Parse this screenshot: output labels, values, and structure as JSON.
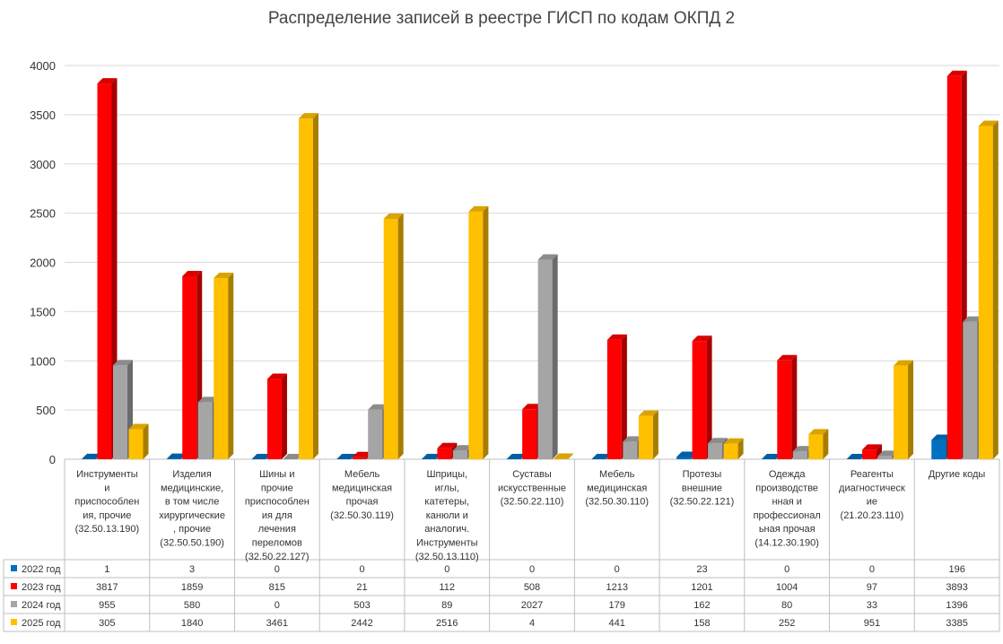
{
  "chart_data": {
    "type": "bar",
    "title": "Распределение записей в реестре ГИСП по кодам ОКПД 2",
    "ylim": [
      0,
      4000
    ],
    "yticks": [
      0,
      500,
      1000,
      1500,
      2000,
      2500,
      3000,
      3500,
      4000
    ],
    "grid": true,
    "legend": "data-table-left",
    "categories": [
      [
        "Инструменты",
        "и",
        "приспособлен",
        "ия, прочие",
        "(32.50.13.190)"
      ],
      [
        "Изделия",
        "медицинские,",
        "в том числе",
        "хирургические",
        ", прочие",
        "(32.50.50.190)"
      ],
      [
        "Шины и",
        "прочие",
        "приспособлен",
        "ия для",
        "лечения",
        "переломов",
        "(32.50.22.127)"
      ],
      [
        "Мебель",
        "медицинская",
        "прочая",
        "(32.50.30.119)"
      ],
      [
        "Шприцы,",
        "иглы,",
        "катетеры,",
        "канюли и",
        "аналогич.",
        "Инструменты",
        "(32.50.13.110)"
      ],
      [
        "Суставы",
        "искусственные",
        "(32.50.22.110)"
      ],
      [
        "Мебель",
        "медицинская",
        "(32.50.30.110)"
      ],
      [
        "Протезы",
        "внешние",
        "(32.50.22.121)"
      ],
      [
        "Одежда",
        "производстве",
        "нная и",
        "профессионал",
        "ьная прочая",
        "(14.12.30.190)"
      ],
      [
        "Реагенты",
        "диагностическ",
        "ие",
        "(21.20.23.110)"
      ],
      [
        "Другие коды"
      ]
    ],
    "series": [
      {
        "name": "2022 год",
        "color": "#0070C0",
        "values": [
          1,
          3,
          0,
          0,
          0,
          0,
          0,
          23,
          0,
          0,
          196
        ]
      },
      {
        "name": "2023 год",
        "color": "#FF0000",
        "values": [
          3817,
          1859,
          815,
          21,
          112,
          508,
          1213,
          1201,
          1004,
          97,
          3893
        ]
      },
      {
        "name": "2024 год",
        "color": "#A5A5A5",
        "values": [
          955,
          580,
          0,
          503,
          89,
          2027,
          179,
          162,
          80,
          33,
          1396
        ]
      },
      {
        "name": "2025 год",
        "color": "#FFC000",
        "values": [
          305,
          1840,
          3461,
          2442,
          2516,
          4,
          441,
          158,
          252,
          951,
          3385
        ]
      }
    ]
  }
}
